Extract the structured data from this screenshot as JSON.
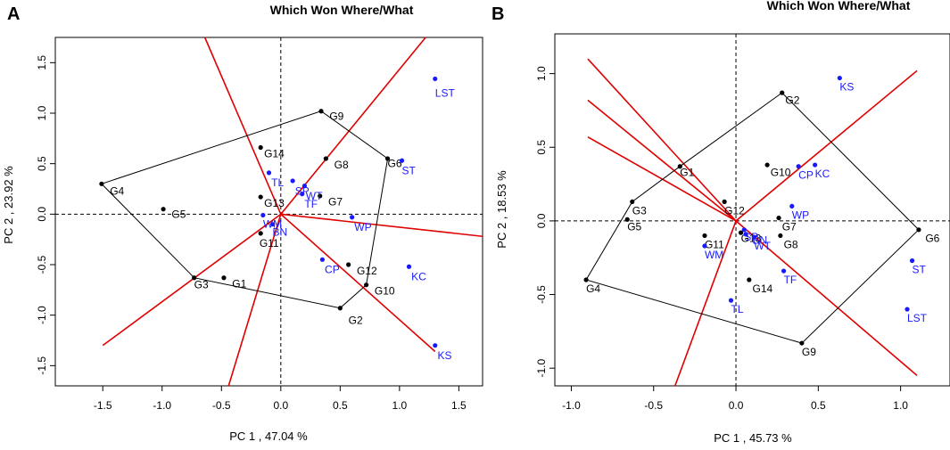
{
  "chart_data": [
    {
      "type": "scatter",
      "panel_label": "A",
      "title": "Which Won Where/What",
      "xlabel": "PC 1 , 47.04 %",
      "ylabel": "PC 2 , 23.92 %",
      "xlim": [
        -1.9,
        1.7
      ],
      "ylim": [
        -1.7,
        1.75
      ],
      "xticks": [
        -1.5,
        -1.0,
        -0.5,
        0.0,
        0.5,
        1.0,
        1.5
      ],
      "xtick_labels": [
        "-1.5",
        "-1.0",
        "-0.5",
        "0.0",
        "0.5",
        "1.0",
        "1.5"
      ],
      "yticks": [
        -1.5,
        -1.0,
        -0.5,
        0.0,
        0.5,
        1.0,
        1.5
      ],
      "ytick_labels": [
        "-1.5",
        "-1.0",
        "-0.5",
        "0.0",
        "0.5",
        "1.0",
        "1.5"
      ],
      "colors": {
        "genotype": "#000000",
        "environment": "#1a1aff",
        "hull": "#000000",
        "rays": "#e00000"
      },
      "genotypes": [
        {
          "name": "G1",
          "x": -0.48,
          "y": -0.63
        },
        {
          "name": "G2",
          "x": 0.5,
          "y": -0.93
        },
        {
          "name": "G3",
          "x": -0.73,
          "y": -0.63
        },
        {
          "name": "G4",
          "x": -1.51,
          "y": 0.3
        },
        {
          "name": "G5",
          "x": -0.99,
          "y": 0.05
        },
        {
          "name": "G6",
          "x": 0.9,
          "y": 0.55
        },
        {
          "name": "G7",
          "x": 0.33,
          "y": 0.18
        },
        {
          "name": "G8",
          "x": 0.38,
          "y": 0.55
        },
        {
          "name": "G9",
          "x": 0.34,
          "y": 1.02
        },
        {
          "name": "G10",
          "x": 0.72,
          "y": -0.7
        },
        {
          "name": "G11",
          "x": -0.17,
          "y": -0.19
        },
        {
          "name": "G12",
          "x": 0.57,
          "y": -0.5
        },
        {
          "name": "G13",
          "x": -0.17,
          "y": 0.17
        },
        {
          "name": "G14",
          "x": -0.17,
          "y": 0.66
        }
      ],
      "genotype_labels": [
        {
          "name": "G1",
          "dx": 0.07,
          "dy": -0.06
        },
        {
          "name": "G2",
          "dx": 0.07,
          "dy": -0.12
        },
        {
          "name": "G3",
          "dx": 0.0,
          "dy": -0.07
        },
        {
          "name": "G4",
          "dx": 0.07,
          "dy": -0.07
        },
        {
          "name": "G5",
          "dx": 0.07,
          "dy": -0.05
        },
        {
          "name": "G6",
          "dx": 0.0,
          "dy": -0.05
        },
        {
          "name": "G7",
          "dx": 0.07,
          "dy": -0.06
        },
        {
          "name": "G8",
          "dx": 0.07,
          "dy": -0.06
        },
        {
          "name": "G9",
          "dx": 0.07,
          "dy": -0.05
        },
        {
          "name": "G10",
          "dx": 0.07,
          "dy": -0.06
        },
        {
          "name": "G11",
          "dx": -0.01,
          "dy": -0.1
        },
        {
          "name": "G12",
          "dx": 0.07,
          "dy": -0.06
        },
        {
          "name": "G13",
          "dx": 0.03,
          "dy": -0.06
        },
        {
          "name": "G14",
          "dx": 0.03,
          "dy": -0.06
        }
      ],
      "environments": [
        {
          "name": "LST",
          "x": 1.3,
          "y": 1.34
        },
        {
          "name": "ST",
          "x": 1.02,
          "y": 0.53
        },
        {
          "name": "TL",
          "x": -0.1,
          "y": 0.41
        },
        {
          "name": "SP",
          "x": 0.1,
          "y": 0.33
        },
        {
          "name": "WT",
          "x": 0.2,
          "y": 0.28
        },
        {
          "name": "TF",
          "x": 0.18,
          "y": 0.2
        },
        {
          "name": "WP",
          "x": 0.6,
          "y": -0.03
        },
        {
          "name": "WM",
          "x": -0.15,
          "y": -0.01
        },
        {
          "name": "BN",
          "x": -0.07,
          "y": -0.1
        },
        {
          "name": "CP",
          "x": 0.35,
          "y": -0.45
        },
        {
          "name": "KC",
          "x": 1.08,
          "y": -0.52
        },
        {
          "name": "KS",
          "x": 1.3,
          "y": -1.3
        }
      ],
      "environment_labels": [
        {
          "name": "LST",
          "dx": 0.0,
          "dy": -0.14
        },
        {
          "name": "ST",
          "dx": 0.0,
          "dy": -0.1
        },
        {
          "name": "TL",
          "dx": 0.02,
          "dy": -0.1
        },
        {
          "name": "SP",
          "dx": 0.02,
          "dy": -0.1
        },
        {
          "name": "WT",
          "dx": 0.01,
          "dy": -0.1
        },
        {
          "name": "TF",
          "dx": 0.02,
          "dy": -0.1
        },
        {
          "name": "WP",
          "dx": 0.02,
          "dy": -0.1
        },
        {
          "name": "WM",
          "dx": 0.0,
          "dy": -0.09
        },
        {
          "name": "BN",
          "dx": 0.0,
          "dy": -0.08
        },
        {
          "name": "CP",
          "dx": 0.02,
          "dy": -0.1
        },
        {
          "name": "KC",
          "dx": 0.02,
          "dy": -0.1
        },
        {
          "name": "KS",
          "dx": 0.02,
          "dy": -0.1
        }
      ],
      "hull": [
        "G4",
        "G9",
        "G6",
        "G10",
        "G2",
        "G3"
      ],
      "rays": [
        {
          "to": [
            -0.64,
            1.75
          ]
        },
        {
          "to": [
            1.22,
            1.75
          ]
        },
        {
          "to": [
            1.7,
            -0.22
          ]
        },
        {
          "to": [
            1.3,
            -1.36
          ]
        },
        {
          "to": [
            -0.44,
            -1.7
          ]
        },
        {
          "to": [
            -1.5,
            -1.3
          ]
        }
      ]
    },
    {
      "type": "scatter",
      "panel_label": "B",
      "title": "Which Won Where/What",
      "xlabel": "PC 1 , 45.73 %",
      "ylabel": "PC 2 , 18.53 %",
      "xlim": [
        -1.1,
        1.3
      ],
      "ylim": [
        -1.12,
        1.27
      ],
      "xticks": [
        -1.0,
        -0.5,
        0.0,
        0.5,
        1.0
      ],
      "xtick_labels": [
        "-1.0",
        "-0.5",
        "0.0",
        "0.5",
        "1.0"
      ],
      "yticks": [
        -1.0,
        -0.5,
        0.0,
        0.5,
        1.0
      ],
      "ytick_labels": [
        "-1.0",
        "-0.5",
        "0.0",
        "0.5",
        "1.0"
      ],
      "colors": {
        "genotype": "#000000",
        "environment": "#1a1aff",
        "hull": "#000000",
        "rays": "#e00000"
      },
      "genotypes": [
        {
          "name": "G1",
          "x": -0.34,
          "y": 0.37
        },
        {
          "name": "G2",
          "x": 0.28,
          "y": 0.87
        },
        {
          "name": "G3",
          "x": -0.63,
          "y": 0.13
        },
        {
          "name": "G4",
          "x": -0.91,
          "y": -0.4
        },
        {
          "name": "G5",
          "x": -0.66,
          "y": 0.01
        },
        {
          "name": "G6",
          "x": 1.11,
          "y": -0.06
        },
        {
          "name": "G7",
          "x": 0.26,
          "y": 0.02
        },
        {
          "name": "G8",
          "x": 0.27,
          "y": -0.1
        },
        {
          "name": "G9",
          "x": 0.4,
          "y": -0.83
        },
        {
          "name": "G10",
          "x": 0.19,
          "y": 0.38
        },
        {
          "name": "G11",
          "x": -0.19,
          "y": -0.1
        },
        {
          "name": "G12",
          "x": -0.07,
          "y": 0.13
        },
        {
          "name": "G13",
          "x": 0.03,
          "y": -0.08
        },
        {
          "name": "G14",
          "x": 0.08,
          "y": -0.4
        }
      ],
      "genotype_labels": [
        {
          "name": "G1",
          "dx": 0.0,
          "dy": -0.04
        },
        {
          "name": "G2",
          "dx": 0.02,
          "dy": -0.05
        },
        {
          "name": "G3",
          "dx": 0.0,
          "dy": -0.06
        },
        {
          "name": "G4",
          "dx": 0.0,
          "dy": -0.06
        },
        {
          "name": "G5",
          "dx": 0.0,
          "dy": -0.05
        },
        {
          "name": "G6",
          "dx": 0.04,
          "dy": -0.06
        },
        {
          "name": "G7",
          "dx": 0.02,
          "dy": -0.06
        },
        {
          "name": "G8",
          "dx": 0.02,
          "dy": -0.06
        },
        {
          "name": "G9",
          "dx": 0.0,
          "dy": -0.06
        },
        {
          "name": "G10",
          "dx": 0.02,
          "dy": -0.05
        },
        {
          "name": "G11",
          "dx": 0.0,
          "dy": -0.06
        },
        {
          "name": "G12",
          "dx": 0.0,
          "dy": -0.06
        },
        {
          "name": "G13",
          "dx": 0.0,
          "dy": -0.04
        },
        {
          "name": "G14",
          "dx": 0.02,
          "dy": -0.06
        }
      ],
      "environments": [
        {
          "name": "KS",
          "x": 0.63,
          "y": 0.97
        },
        {
          "name": "CP",
          "x": 0.38,
          "y": 0.37
        },
        {
          "name": "KC",
          "x": 0.48,
          "y": 0.38
        },
        {
          "name": "WP",
          "x": 0.34,
          "y": 0.1
        },
        {
          "name": "SP",
          "x": 0.05,
          "y": -0.06
        },
        {
          "name": "BN",
          "x": 0.06,
          "y": -0.09
        },
        {
          "name": "WT",
          "x": 0.11,
          "y": -0.11
        },
        {
          "name": "WM",
          "x": -0.19,
          "y": -0.17
        },
        {
          "name": "TF",
          "x": 0.29,
          "y": -0.34
        },
        {
          "name": "TL",
          "x": -0.03,
          "y": -0.54
        },
        {
          "name": "ST",
          "x": 1.07,
          "y": -0.27
        },
        {
          "name": "LST",
          "x": 1.04,
          "y": -0.6
        }
      ],
      "environment_labels": [
        {
          "name": "KS",
          "dx": 0.0,
          "dy": -0.06
        },
        {
          "name": "CP",
          "dx": 0.0,
          "dy": -0.06
        },
        {
          "name": "KC",
          "dx": 0.0,
          "dy": -0.06
        },
        {
          "name": "WP",
          "dx": 0.0,
          "dy": -0.06
        },
        {
          "name": "SP",
          "dx": 0.0,
          "dy": -0.05
        },
        {
          "name": "BN",
          "dx": 0.04,
          "dy": -0.04
        },
        {
          "name": "WT",
          "dx": 0.0,
          "dy": -0.06
        },
        {
          "name": "WM",
          "dx": 0.0,
          "dy": -0.06
        },
        {
          "name": "TF",
          "dx": 0.0,
          "dy": -0.06
        },
        {
          "name": "TL",
          "dx": 0.0,
          "dy": -0.06
        },
        {
          "name": "ST",
          "dx": 0.0,
          "dy": -0.06
        },
        {
          "name": "LST",
          "dx": 0.0,
          "dy": -0.06
        }
      ],
      "hull": [
        "G2",
        "G6",
        "G9",
        "G4",
        "G3",
        "G1"
      ],
      "rays": [
        {
          "to": [
            -0.9,
            1.1
          ]
        },
        {
          "to": [
            -0.9,
            0.82
          ]
        },
        {
          "to": [
            -0.9,
            0.57
          ]
        },
        {
          "to": [
            1.1,
            1.02
          ]
        },
        {
          "to": [
            1.1,
            -1.05
          ]
        },
        {
          "to": [
            -0.37,
            -1.12
          ]
        }
      ]
    }
  ]
}
